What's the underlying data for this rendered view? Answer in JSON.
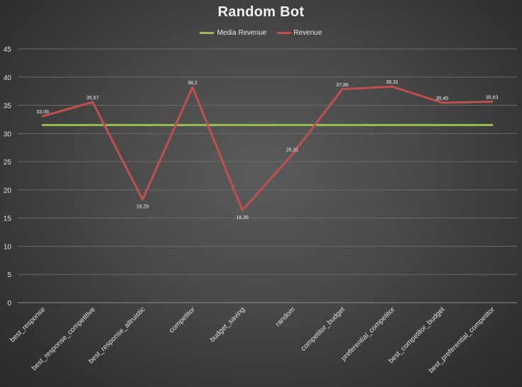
{
  "chart_data": {
    "type": "line",
    "title": "Random Bot",
    "categories": [
      "best_response",
      "best_response_competitive",
      "best_response_altruistic",
      "competitor",
      "budget_saving",
      "random",
      "competitor_budget",
      "preferential_competitor",
      "best_competitor_budget",
      "best_preferential_competitor"
    ],
    "series": [
      {
        "name": "Media Revenue",
        "color": "#9bbb59",
        "values": [
          31.5,
          31.5,
          31.5,
          31.5,
          31.5,
          31.5,
          31.5,
          31.5,
          31.5,
          31.5
        ],
        "labels": null
      },
      {
        "name": "Revenue",
        "color": "#c0504d",
        "values": [
          33.06,
          35.57,
          18.29,
          38.2,
          16.35,
          26.31,
          37.86,
          38.31,
          35.45,
          35.63
        ],
        "labels": [
          "33,06",
          "35,57",
          "18,29",
          "38,2",
          "16,35",
          "26,31",
          "37,86",
          "38,31",
          "35,45",
          "35,63"
        ]
      }
    ],
    "ylim": [
      0,
      45
    ],
    "yticks": [
      0,
      5,
      10,
      15,
      20,
      25,
      30,
      35,
      40,
      45
    ],
    "xlabel": "",
    "ylabel": "",
    "grid": true,
    "legend_position": "top"
  }
}
